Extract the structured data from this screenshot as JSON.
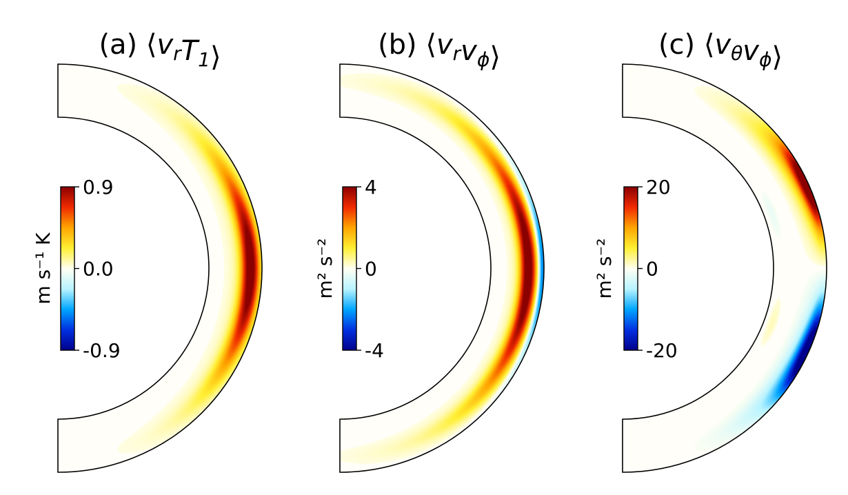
{
  "colors": {
    "background": "#fffef8",
    "outline": "#000000",
    "colormap": [
      "#00008b",
      "#0030e0",
      "#00a6ff",
      "#b8f4ff",
      "#fffff2",
      "#ffef33",
      "#ffa500",
      "#f02a00",
      "#8b0000"
    ]
  },
  "chart_data": [
    {
      "type": "heatmap",
      "geometry": "meridional half-annulus",
      "title": {
        "prefix": "(a) ",
        "terms": [
          {
            "base": "v",
            "sub": "r"
          },
          {
            "base": "T",
            "sub": "1"
          }
        ]
      },
      "colorbar": {
        "label": "m s⁻¹ K",
        "vmin": -0.9,
        "vmax": 0.9,
        "ticks": [
          "0.9",
          "0.0",
          "-0.9"
        ]
      },
      "features": [
        {
          "value": 0.9,
          "center_colat_deg": 90,
          "colat_halfwidth_deg": 32,
          "radius_fraction": 0.78,
          "radial_width": 0.17
        },
        {
          "value": 0.12,
          "center_colat_deg": 90,
          "colat_halfwidth_deg": 48,
          "radius_fraction": 0.72,
          "radial_width": 0.32
        }
      ]
    },
    {
      "type": "heatmap",
      "geometry": "meridional half-annulus",
      "title": {
        "prefix": "(b) ",
        "terms": [
          {
            "base": "v",
            "sub": "r"
          },
          {
            "base": "v",
            "sub": "ϕ"
          }
        ]
      },
      "colorbar": {
        "label": "m² s⁻²",
        "vmin": -4,
        "vmax": 4,
        "ticks": [
          "4",
          "0",
          "-4"
        ]
      },
      "features": [
        {
          "value": 4.0,
          "center_colat_deg": 90,
          "colat_halfwidth_deg": 40,
          "radius_fraction": 0.7,
          "radial_width": 0.15
        },
        {
          "value": 0.6,
          "center_colat_deg": 90,
          "colat_halfwidth_deg": 62,
          "radius_fraction": 0.68,
          "radial_width": 0.27
        },
        {
          "value": -2.6,
          "center_colat_deg": 90,
          "colat_halfwidth_deg": 28,
          "radius_fraction": 0.96,
          "radial_width": 0.07
        }
      ]
    },
    {
      "type": "heatmap",
      "geometry": "meridional half-annulus",
      "title": {
        "prefix": "(c) ",
        "terms": [
          {
            "base": "v",
            "sub": "θ"
          },
          {
            "base": "v",
            "sub": "ϕ"
          }
        ]
      },
      "colorbar": {
        "label": "m² s⁻²",
        "vmin": -20,
        "vmax": 20,
        "ticks": [
          "20",
          "0",
          "-20"
        ]
      },
      "features": [
        {
          "value": 22,
          "center_colat_deg": 66,
          "colat_halfwidth_deg": 14,
          "radius_fraction": 0.97,
          "radial_width": 0.15
        },
        {
          "value": 6,
          "center_colat_deg": 58,
          "colat_halfwidth_deg": 22,
          "radius_fraction": 0.8,
          "radial_width": 0.2
        },
        {
          "value": -22,
          "center_colat_deg": 114,
          "colat_halfwidth_deg": 14,
          "radius_fraction": 0.97,
          "radial_width": 0.15
        },
        {
          "value": -6,
          "center_colat_deg": 122,
          "colat_halfwidth_deg": 22,
          "radius_fraction": 0.8,
          "radial_width": 0.2
        },
        {
          "value": -1.5,
          "center_colat_deg": 70,
          "colat_halfwidth_deg": 8,
          "radius_fraction": 0.15,
          "radial_width": 0.08
        },
        {
          "value": 1.5,
          "center_colat_deg": 110,
          "colat_halfwidth_deg": 8,
          "radius_fraction": 0.15,
          "radial_width": 0.08
        }
      ]
    }
  ]
}
